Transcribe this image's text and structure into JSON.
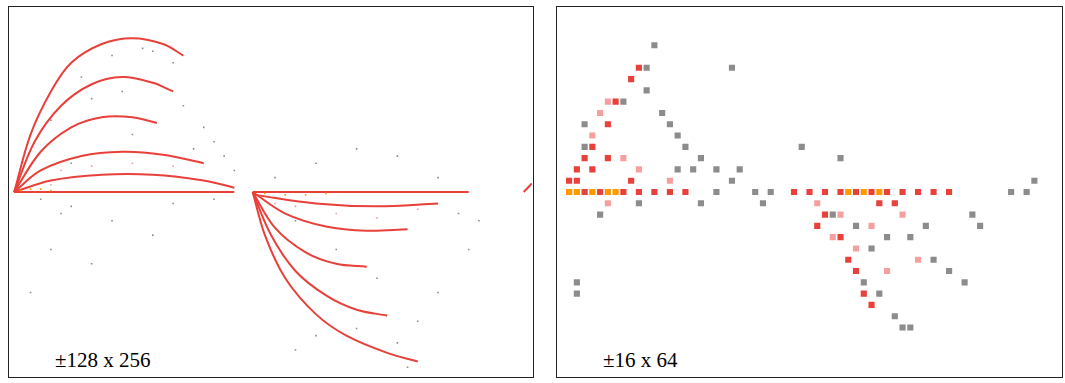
{
  "chart_data": [
    {
      "type": "scatter",
      "annotation": "±128 x 256",
      "xlim": [
        0,
        256
      ],
      "ylim": [
        -128,
        128
      ],
      "tick_labels": false,
      "grid": false,
      "series": [
        {
          "color": "#8c8c8c",
          "marker": "square",
          "x": [
            20,
            35,
            50,
            65,
            80,
            70,
            40,
            55,
            85,
            95,
            100,
            105,
            110,
            90,
            60,
            30,
            15,
            30,
            50,
            70,
            20,
            40,
            10,
            25,
            80,
            100,
            130,
            150,
            170,
            190,
            210,
            140,
            160,
            180,
            200,
            195,
            210,
            225,
            230,
            170,
            150,
            190,
            140,
            220
          ],
          "values": [
            50,
            80,
            95,
            100,
            90,
            98,
            65,
            70,
            60,
            45,
            35,
            25,
            15,
            30,
            40,
            20,
            -5,
            -10,
            -20,
            -30,
            -40,
            -50,
            -70,
            -15,
            -8,
            -5,
            10,
            20,
            30,
            25,
            10,
            -20,
            -40,
            -60,
            -90,
            -122,
            -70,
            -40,
            -20,
            -95,
            -100,
            -105,
            -110,
            -15
          ]
        },
        {
          "color": "#f4a0a0",
          "marker": "square",
          "x": [
            10,
            25,
            40,
            60,
            80,
            20,
            140,
            160,
            180,
            200,
            130
          ],
          "values": [
            10,
            15,
            18,
            20,
            18,
            5,
            -10,
            -15,
            -18,
            -12,
            -8
          ]
        },
        {
          "color": "#e8403a",
          "marker": "none",
          "line_style": "solid",
          "x": [
            2,
            10,
            20,
            30,
            45,
            60,
            75,
            85
          ],
          "values": [
            0,
            40,
            70,
            90,
            103,
            107,
            103,
            95
          ]
        },
        {
          "color": "#e8403a",
          "marker": "none",
          "line_style": "solid",
          "x": [
            2,
            12,
            25,
            40,
            55,
            70,
            80
          ],
          "values": [
            0,
            35,
            60,
            75,
            80,
            76,
            70
          ]
        },
        {
          "color": "#e8403a",
          "marker": "none",
          "line_style": "solid",
          "x": [
            2,
            15,
            30,
            45,
            60,
            72
          ],
          "values": [
            0,
            28,
            45,
            52,
            52,
            48
          ]
        },
        {
          "color": "#e8403a",
          "marker": "none",
          "line_style": "solid",
          "x": [
            2,
            15,
            35,
            55,
            75,
            95
          ],
          "values": [
            0,
            15,
            25,
            28,
            26,
            20
          ]
        },
        {
          "color": "#e8403a",
          "marker": "none",
          "line_style": "solid",
          "x": [
            2,
            20,
            45,
            70,
            95,
            110
          ],
          "values": [
            0,
            8,
            12,
            12,
            8,
            3
          ]
        },
        {
          "color": "#e8403a",
          "marker": "none",
          "line_style": "solid",
          "x": [
            2,
            110
          ],
          "values": [
            0,
            0
          ]
        },
        {
          "color": "#e8403a",
          "marker": "none",
          "line_style": "solid",
          "x": [
            119,
            125,
            135,
            150,
            165,
            185,
            200
          ],
          "values": [
            0,
            -30,
            -60,
            -85,
            -100,
            -112,
            -118
          ]
        },
        {
          "color": "#e8403a",
          "marker": "none",
          "line_style": "solid",
          "x": [
            119,
            128,
            140,
            155,
            170,
            185
          ],
          "values": [
            0,
            -30,
            -55,
            -72,
            -82,
            -86
          ]
        },
        {
          "color": "#e8403a",
          "marker": "none",
          "line_style": "solid",
          "x": [
            119,
            130,
            145,
            160,
            175
          ],
          "values": [
            0,
            -25,
            -42,
            -50,
            -52
          ]
        },
        {
          "color": "#e8403a",
          "marker": "none",
          "line_style": "solid",
          "x": [
            119,
            135,
            155,
            175,
            195
          ],
          "values": [
            0,
            -15,
            -24,
            -27,
            -26
          ]
        },
        {
          "color": "#e8403a",
          "marker": "none",
          "line_style": "solid",
          "x": [
            120,
            150,
            180,
            210
          ],
          "values": [
            -2,
            -8,
            -10,
            -8
          ]
        },
        {
          "color": "#e8403a",
          "marker": "none",
          "line_style": "solid",
          "x": [
            119,
            225
          ],
          "values": [
            0,
            0
          ]
        },
        {
          "color": "#e8403a",
          "marker": "none",
          "line_style": "solid",
          "x": [
            252,
            256
          ],
          "values": [
            0,
            6
          ]
        },
        {
          "color": "#ff9900",
          "marker": "square",
          "x": [
            5,
            10,
            15,
            20,
            125,
            135,
            145,
            155
          ],
          "values": [
            1,
            2,
            2,
            1,
            -1,
            -2,
            -2,
            -1
          ]
        }
      ]
    },
    {
      "type": "scatter",
      "annotation": "±16 x 64",
      "xlim": [
        0,
        64
      ],
      "ylim": [
        -16,
        16
      ],
      "tick_labels": false,
      "grid": false,
      "series": [
        {
          "color": "#8c8c8c",
          "marker": "square",
          "x": [
            11,
            12,
            11,
            8,
            13,
            14,
            15,
            16,
            18,
            20,
            22,
            23,
            25,
            26,
            27,
            22,
            36,
            31,
            2,
            2,
            35,
            38,
            40,
            42,
            45,
            48,
            50,
            52,
            47,
            39,
            41,
            43,
            44,
            45,
            53,
            54,
            58,
            60,
            61,
            20,
            18,
            5,
            10,
            15,
            17,
            3,
            3
          ],
          "values": [
            11,
            13,
            9,
            8,
            7,
            6,
            5,
            4,
            3,
            2,
            1,
            2,
            0,
            -1,
            0,
            11,
            3,
            4,
            -8,
            -9,
            -2,
            -3,
            -5,
            -4,
            -4,
            -6,
            -7,
            -8,
            -3,
            -8,
            -9,
            -11,
            -12,
            -12,
            -2,
            -3,
            0,
            0,
            1,
            0,
            -1,
            -2,
            -1,
            2,
            2,
            6,
            4
          ]
        },
        {
          "color": "#f4a0a0",
          "marker": "square",
          "x": [
            5,
            6,
            4,
            8,
            10,
            14,
            6,
            33,
            36,
            40,
            44,
            46,
            38,
            42,
            35
          ],
          "values": [
            7,
            8,
            5,
            3,
            2,
            1,
            -1,
            -1,
            -2,
            -3,
            -2,
            -6,
            -5,
            -7,
            -4
          ]
        },
        {
          "color": "#e8403a",
          "marker": "square",
          "x": [
            1,
            2,
            3,
            4,
            6,
            7,
            9,
            10,
            1,
            3,
            5,
            8,
            10,
            12,
            14,
            16,
            2,
            4,
            6,
            9,
            30,
            32,
            34,
            36,
            38,
            40,
            42,
            44,
            46,
            48,
            50,
            34,
            36,
            37,
            38,
            39,
            40,
            33,
            41,
            43
          ],
          "values": [
            1,
            2,
            3,
            4,
            6,
            8,
            10,
            11,
            0,
            0,
            0,
            0,
            0,
            0,
            0,
            0,
            1,
            2,
            3,
            1,
            0,
            0,
            0,
            0,
            0,
            0,
            0,
            0,
            0,
            0,
            0,
            -2,
            -4,
            -6,
            -7,
            -9,
            -10,
            -3,
            -1,
            -1
          ]
        },
        {
          "color": "#ff9900",
          "marker": "square",
          "x": [
            1,
            2,
            4,
            6,
            7,
            37,
            39,
            41
          ],
          "values": [
            0,
            0,
            0,
            0,
            0,
            0,
            0,
            0
          ]
        }
      ]
    }
  ]
}
